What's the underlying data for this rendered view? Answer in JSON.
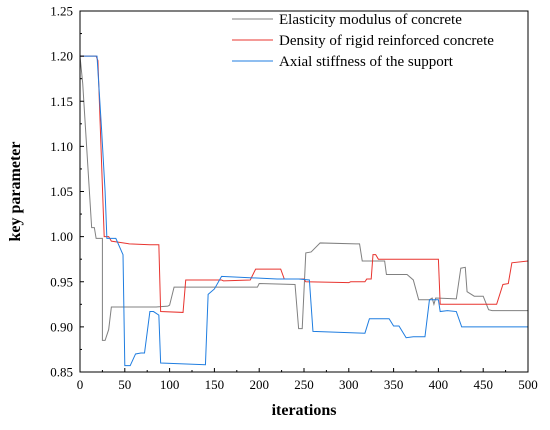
{
  "chart_data": {
    "type": "line",
    "xlabel": "iterations",
    "ylabel": "key parameter",
    "xlim": [
      0,
      500
    ],
    "ylim": [
      0.85,
      1.25
    ],
    "x_ticks": [
      "0",
      "50",
      "100",
      "150",
      "200",
      "250",
      "300",
      "350",
      "400",
      "450",
      "500"
    ],
    "y_ticks": [
      "0.85",
      "0.90",
      "0.95",
      "1.00",
      "1.05",
      "1.10",
      "1.15",
      "1.20",
      "1.25"
    ],
    "grid": false,
    "legend_position": "top-right",
    "series": [
      {
        "name": "Elasticity modulus of concrete",
        "color": "#808080",
        "points": [
          [
            0,
            1.2
          ],
          [
            3,
            1.17
          ],
          [
            13,
            1.01
          ],
          [
            16,
            1.01
          ],
          [
            18,
            0.998
          ],
          [
            25,
            0.998
          ],
          [
            25,
            0.885
          ],
          [
            28,
            0.885
          ],
          [
            32,
            0.897
          ],
          [
            35,
            0.922
          ],
          [
            38,
            0.922
          ],
          [
            85,
            0.922
          ],
          [
            98,
            0.923
          ],
          [
            100,
            0.924
          ],
          [
            105,
            0.944
          ],
          [
            198,
            0.944
          ],
          [
            200,
            0.948
          ],
          [
            240,
            0.947
          ],
          [
            244,
            0.898
          ],
          [
            248,
            0.898
          ],
          [
            252,
            0.982
          ],
          [
            258,
            0.983
          ],
          [
            268,
            0.993
          ],
          [
            308,
            0.992
          ],
          [
            312,
            0.992
          ],
          [
            315,
            0.973
          ],
          [
            340,
            0.973
          ],
          [
            342,
            0.958
          ],
          [
            365,
            0.958
          ],
          [
            372,
            0.952
          ],
          [
            378,
            0.93
          ],
          [
            390,
            0.93
          ],
          [
            393,
            0.932
          ],
          [
            395,
            0.925
          ],
          [
            397,
            0.932
          ],
          [
            420,
            0.931
          ],
          [
            425,
            0.965
          ],
          [
            430,
            0.966
          ],
          [
            432,
            0.939
          ],
          [
            440,
            0.934
          ],
          [
            450,
            0.934
          ],
          [
            456,
            0.919
          ],
          [
            460,
            0.918
          ],
          [
            500,
            0.918
          ]
        ]
      },
      {
        "name": "Density of rigid reinforced concrete",
        "color": "#e8342f",
        "points": [
          [
            0,
            1.2
          ],
          [
            18,
            1.2
          ],
          [
            20,
            1.195
          ],
          [
            27,
            1.0
          ],
          [
            32,
            1.0
          ],
          [
            35,
            0.995
          ],
          [
            55,
            0.992
          ],
          [
            78,
            0.991
          ],
          [
            88,
            0.991
          ],
          [
            90,
            0.917
          ],
          [
            115,
            0.916
          ],
          [
            118,
            0.952
          ],
          [
            158,
            0.952
          ],
          [
            160,
            0.951
          ],
          [
            190,
            0.952
          ],
          [
            196,
            0.964
          ],
          [
            224,
            0.964
          ],
          [
            228,
            0.953
          ],
          [
            250,
            0.953
          ],
          [
            252,
            0.95
          ],
          [
            300,
            0.949
          ],
          [
            302,
            0.95
          ],
          [
            318,
            0.95
          ],
          [
            320,
            0.953
          ],
          [
            325,
            0.953
          ],
          [
            327,
            0.98
          ],
          [
            330,
            0.98
          ],
          [
            333,
            0.975
          ],
          [
            400,
            0.975
          ],
          [
            402,
            0.925
          ],
          [
            465,
            0.925
          ],
          [
            472,
            0.947
          ],
          [
            478,
            0.948
          ],
          [
            482,
            0.971
          ],
          [
            500,
            0.973
          ]
        ]
      },
      {
        "name": "Axial stiffness of the support",
        "color": "#1f7de0",
        "points": [
          [
            0,
            1.2
          ],
          [
            19,
            1.2
          ],
          [
            24,
            1.12
          ],
          [
            28,
            1.05
          ],
          [
            30,
            0.998
          ],
          [
            36,
            0.998
          ],
          [
            40,
            0.998
          ],
          [
            48,
            0.98
          ],
          [
            50,
            0.857
          ],
          [
            56,
            0.857
          ],
          [
            62,
            0.87
          ],
          [
            68,
            0.871
          ],
          [
            72,
            0.871
          ],
          [
            78,
            0.917
          ],
          [
            82,
            0.917
          ],
          [
            88,
            0.913
          ],
          [
            90,
            0.86
          ],
          [
            140,
            0.858
          ],
          [
            143,
            0.936
          ],
          [
            150,
            0.942
          ],
          [
            158,
            0.956
          ],
          [
            220,
            0.953
          ],
          [
            244,
            0.953
          ],
          [
            256,
            0.952
          ],
          [
            260,
            0.895
          ],
          [
            318,
            0.893
          ],
          [
            323,
            0.909
          ],
          [
            345,
            0.909
          ],
          [
            350,
            0.901
          ],
          [
            356,
            0.901
          ],
          [
            364,
            0.888
          ],
          [
            372,
            0.889
          ],
          [
            385,
            0.889
          ],
          [
            390,
            0.93
          ],
          [
            400,
            0.93
          ],
          [
            402,
            0.917
          ],
          [
            410,
            0.918
          ],
          [
            420,
            0.917
          ],
          [
            426,
            0.9
          ],
          [
            500,
            0.9
          ]
        ]
      }
    ]
  }
}
